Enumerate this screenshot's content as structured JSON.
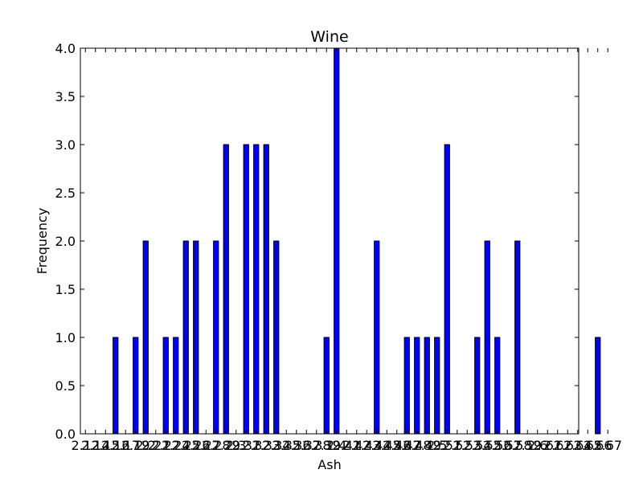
{
  "chart_data": {
    "type": "bar",
    "title": "Wine",
    "xlabel": "Ash",
    "ylabel": "Frequency",
    "ylim": [
      0,
      4.0
    ],
    "yticks": [
      "0.0",
      "0.5",
      "1.0",
      "1.5",
      "2.0",
      "2.5",
      "3.0",
      "3.5",
      "4.0"
    ],
    "grid": false,
    "legend": "none",
    "bar_color": "#0000ff",
    "categories": [
      "2.12",
      "2.14",
      "2.15",
      "2.16",
      "2.17",
      "2.19",
      "2.2",
      "2.21",
      "2.22",
      "2.24",
      "2.25",
      "2.26",
      "2.27",
      "2.28",
      "2.29",
      "2.3",
      "2.31",
      "2.32",
      "2.33",
      "2.34",
      "2.35",
      "2.36",
      "2.37",
      "2.38",
      "2.39",
      "2.4",
      "2.41",
      "2.42",
      "2.43",
      "2.44",
      "2.45",
      "2.46",
      "2.47",
      "2.48",
      "2.49",
      "2.5",
      "2.51",
      "2.52",
      "2.53",
      "2.54",
      "2.55",
      "2.56",
      "2.57",
      "2.58",
      "2.59",
      "2.6",
      "2.61",
      "2.62",
      "2.63",
      "2.64",
      "2.65",
      "2.66",
      "2.67"
    ],
    "values": [
      0,
      0,
      0,
      1,
      0,
      1,
      2,
      0,
      1,
      1,
      2,
      2,
      0,
      2,
      3,
      0,
      3,
      3,
      3,
      2,
      0,
      0,
      0,
      0,
      1,
      4,
      0,
      0,
      0,
      2,
      0,
      0,
      1,
      1,
      1,
      1,
      3,
      0,
      0,
      1,
      2,
      1,
      0,
      2,
      0,
      0,
      0,
      0,
      0,
      0,
      0,
      1,
      0
    ]
  }
}
